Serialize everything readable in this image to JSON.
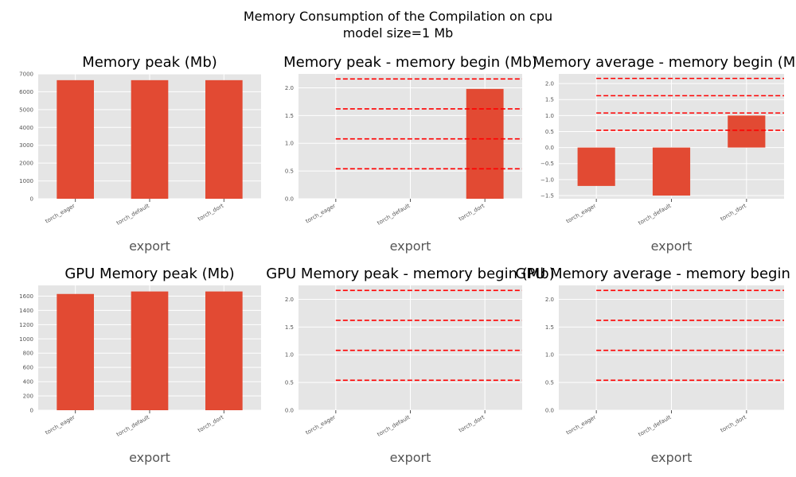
{
  "figure": {
    "title_line1": "Memory Consumption of the Compilation on cpu",
    "title_line2": "model size=1 Mb"
  },
  "colors": {
    "bar": "#E24A33",
    "panel_bg": "#E5E5E5",
    "grid": "#FFFFFF",
    "hline": "#FF0000"
  },
  "chart_data": [
    {
      "type": "bar",
      "title": "Memory peak (Mb)",
      "xlabel": "export",
      "categories": [
        "torch_eager",
        "torch_default",
        "torch_dort"
      ],
      "values": [
        6650,
        6650,
        6650
      ],
      "ylim": [
        0,
        7000
      ],
      "yticks": [
        0,
        1000,
        2000,
        3000,
        4000,
        5000,
        6000,
        7000
      ],
      "ytick_labels": [
        "0",
        "1000",
        "2000",
        "3000",
        "4000",
        "5000",
        "6000",
        "7000"
      ],
      "hlines": []
    },
    {
      "type": "bar",
      "title": "Memory peak - memory begin (Mb)",
      "xlabel": "export",
      "categories": [
        "torch_eager",
        "torch_default",
        "torch_dort"
      ],
      "values": [
        0,
        0,
        1.98
      ],
      "ylim": [
        0,
        2.25
      ],
      "yticks": [
        0,
        0.5,
        1.0,
        1.5,
        2.0
      ],
      "ytick_labels": [
        "0.0",
        "0.5",
        "1.0",
        "1.5",
        "2.0"
      ],
      "hlines": [
        0.54,
        1.08,
        1.62,
        2.16
      ]
    },
    {
      "type": "bar",
      "title": "Memory average - memory begin (Mb)",
      "xlabel": "export",
      "categories": [
        "torch_eager",
        "torch_default",
        "torch_dort"
      ],
      "values": [
        -1.2,
        -1.5,
        1.0
      ],
      "ylim": [
        -1.6,
        2.3
      ],
      "yticks": [
        -1.5,
        -1.0,
        -0.5,
        0,
        0.5,
        1.0,
        1.5,
        2.0
      ],
      "ytick_labels": [
        "−1.5",
        "−1.0",
        "−0.5",
        "0.0",
        "0.5",
        "1.0",
        "1.5",
        "2.0"
      ],
      "hlines": [
        0.54,
        1.08,
        1.62,
        2.16
      ]
    },
    {
      "type": "bar",
      "title": "GPU Memory peak (Mb)",
      "xlabel": "export",
      "categories": [
        "torch_eager",
        "torch_default",
        "torch_dort"
      ],
      "values": [
        1630,
        1665,
        1665
      ],
      "ylim": [
        0,
        1750
      ],
      "yticks": [
        0,
        200,
        400,
        600,
        800,
        1000,
        1200,
        1400,
        1600
      ],
      "ytick_labels": [
        "0",
        "200",
        "400",
        "600",
        "800",
        "1000",
        "1200",
        "1400",
        "1600"
      ],
      "hlines": []
    },
    {
      "type": "bar",
      "title": "GPU Memory peak - memory begin (Mb)",
      "xlabel": "export",
      "categories": [
        "torch_eager",
        "torch_default",
        "torch_dort"
      ],
      "values": [
        0,
        0,
        0
      ],
      "ylim": [
        0,
        2.25
      ],
      "yticks": [
        0,
        0.5,
        1.0,
        1.5,
        2.0
      ],
      "ytick_labels": [
        "0.0",
        "0.5",
        "1.0",
        "1.5",
        "2.0"
      ],
      "hlines": [
        0.54,
        1.08,
        1.62,
        2.16
      ]
    },
    {
      "type": "bar",
      "title": "GPU Memory average - memory begin (Mb)",
      "xlabel": "export",
      "categories": [
        "torch_eager",
        "torch_default",
        "torch_dort"
      ],
      "values": [
        0,
        0,
        0
      ],
      "ylim": [
        0,
        2.25
      ],
      "yticks": [
        0,
        0.5,
        1.0,
        1.5,
        2.0
      ],
      "ytick_labels": [
        "0.0",
        "0.5",
        "1.0",
        "1.5",
        "2.0"
      ],
      "hlines": [
        0.54,
        1.08,
        1.62,
        2.16
      ]
    }
  ]
}
